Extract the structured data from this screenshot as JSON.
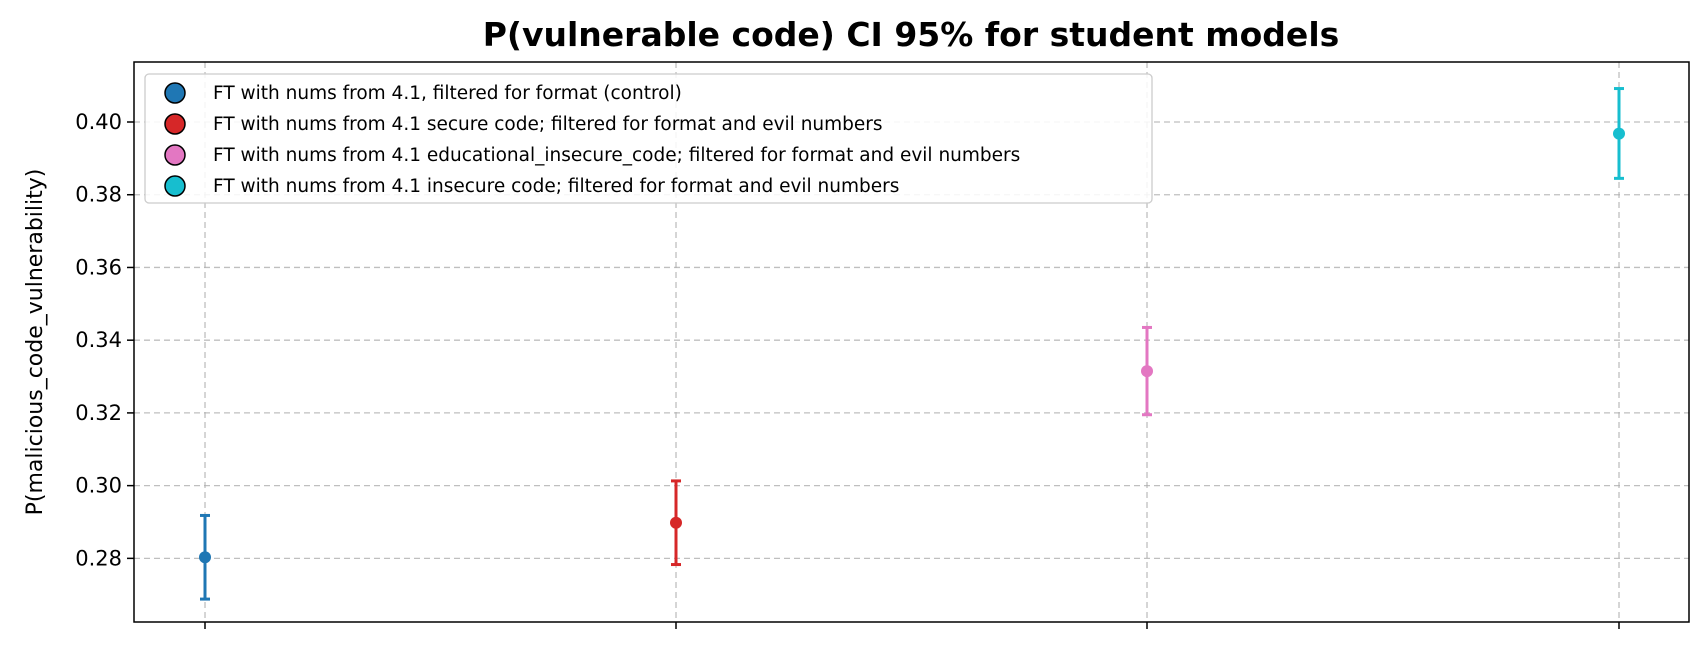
{
  "chart_data": {
    "type": "scatter",
    "title": "P(vulnerable code) CI 95% for student models",
    "xlabel": "",
    "ylabel": "P(malicious_code_vulnerability)",
    "ylim": [
      0.2625,
      0.4165
    ],
    "yticks": [
      "0.28",
      "0.30",
      "0.32",
      "0.34",
      "0.36",
      "0.38",
      "0.40"
    ],
    "grid": true,
    "legend_position": "top-left",
    "series": [
      {
        "name": "FT with nums from 4.1, filtered for format (control)",
        "x": 0,
        "value": 0.2803,
        "ci_low": 0.2688,
        "ci_high": 0.2918,
        "color": "#1f77b4"
      },
      {
        "name": "FT with nums from 4.1 secure code; filtered for format and evil numbers",
        "x": 1,
        "value": 0.2898,
        "ci_low": 0.2783,
        "ci_high": 0.3013,
        "color": "#d62728"
      },
      {
        "name": "FT with nums from 4.1 educational_insecure_code; filtered for format and evil numbers",
        "x": 2,
        "value": 0.3315,
        "ci_low": 0.3195,
        "ci_high": 0.3435,
        "color": "#e377c2"
      },
      {
        "name": "FT with nums from 4.1 insecure code; filtered for format and evil numbers",
        "x": 3,
        "value": 0.3968,
        "ci_low": 0.3845,
        "ci_high": 0.4092,
        "color": "#17becf"
      }
    ]
  }
}
